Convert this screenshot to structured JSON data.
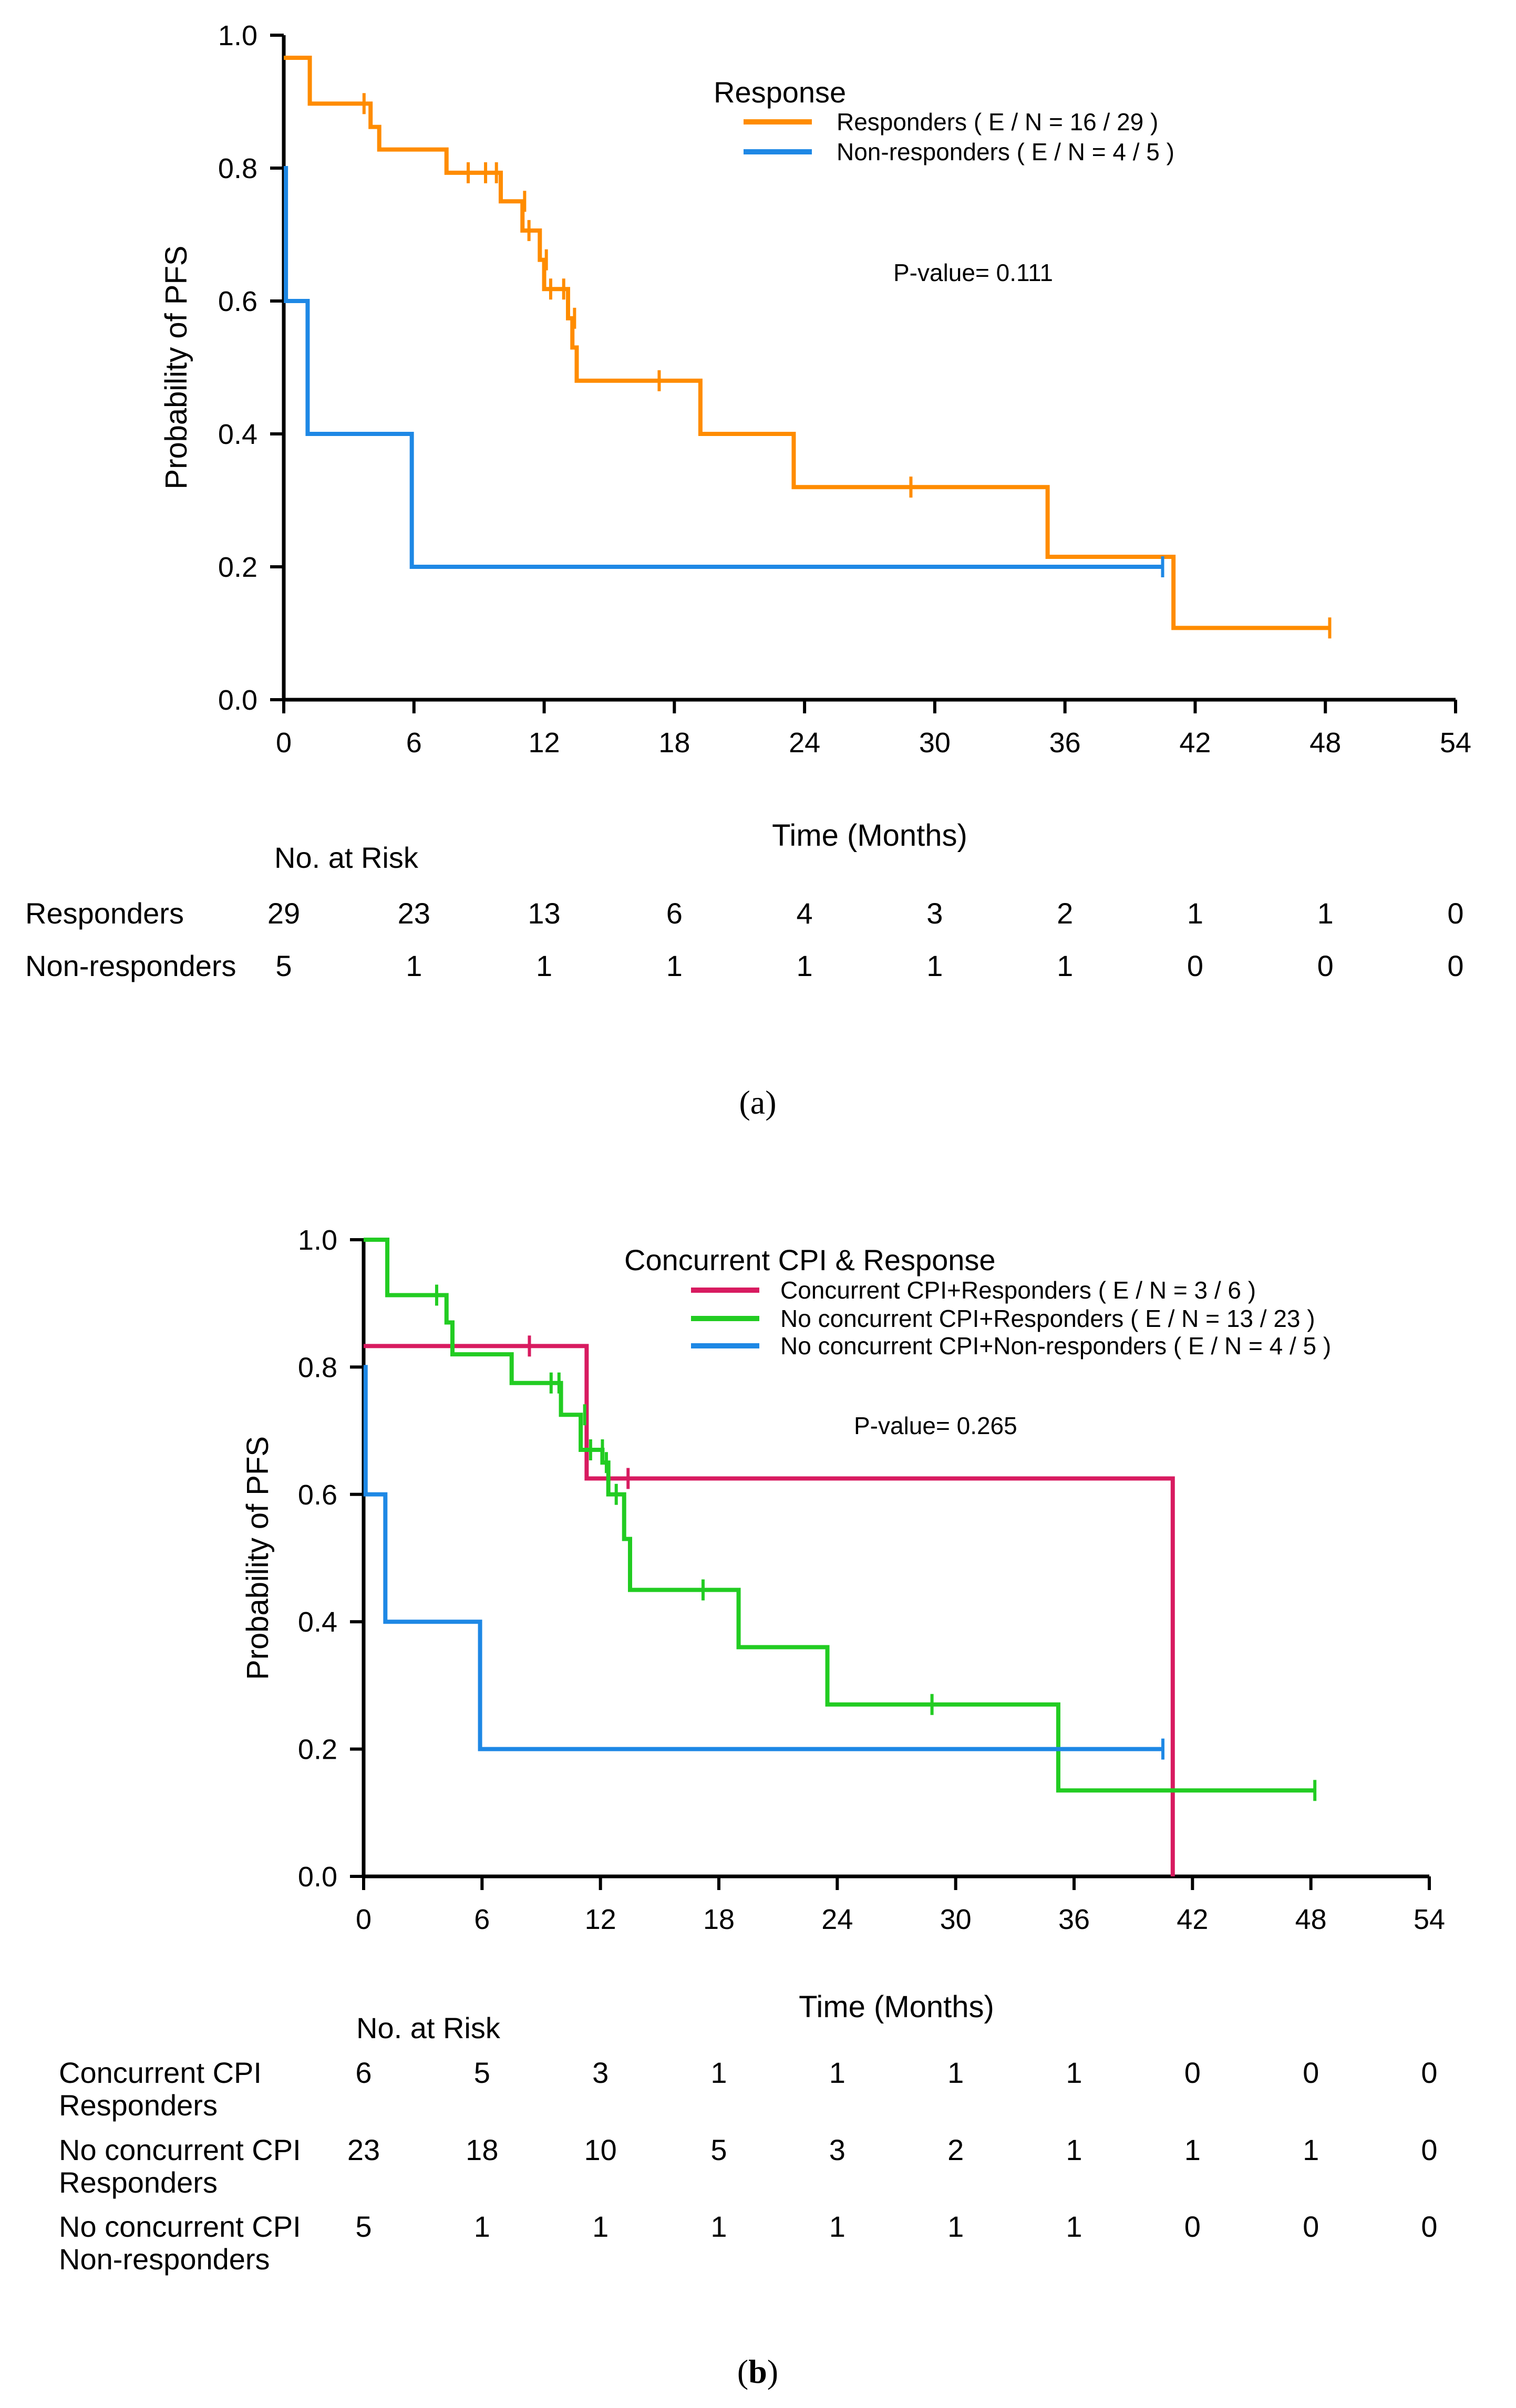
{
  "chart_data": [
    {
      "type": "km_survival",
      "panel_label_parts": [
        "(",
        "a",
        ")"
      ],
      "xlabel": "Time (Months)",
      "ylabel": "Probability of PFS",
      "xticks": [
        0,
        6,
        12,
        18,
        24,
        30,
        36,
        42,
        48,
        54
      ],
      "yticks": [
        "0.0",
        "0.2",
        "0.4",
        "0.6",
        "0.8",
        "1.0"
      ],
      "xlim": [
        0,
        54
      ],
      "ylim": [
        0,
        1
      ],
      "legend_title": "Response",
      "p_value": "P-value= 0.111",
      "series": [
        {
          "name": "Responders",
          "legend": "Responders ( E / N = 16 / 29 )",
          "color": "#ff8c00",
          "steps": [
            [
              0,
              0.966
            ],
            [
              1.2,
              0.897
            ],
            [
              4,
              0.862
            ],
            [
              4.4,
              0.828
            ],
            [
              7.5,
              0.793
            ],
            [
              10,
              0.75
            ],
            [
              11,
              0.706
            ],
            [
              11.8,
              0.662
            ],
            [
              12,
              0.618
            ],
            [
              13.1,
              0.574
            ],
            [
              13.3,
              0.53
            ],
            [
              13.5,
              0.48
            ],
            [
              19.2,
              0.4
            ],
            [
              23.5,
              0.32
            ],
            [
              35.2,
              0.215
            ],
            [
              41,
              0.108
            ],
            [
              48.2,
              0.108
            ]
          ],
          "censors": [
            [
              3.7,
              0.897
            ],
            [
              8.5,
              0.793
            ],
            [
              9.3,
              0.793
            ],
            [
              9.8,
              0.793
            ],
            [
              11.1,
              0.75
            ],
            [
              11.3,
              0.706
            ],
            [
              12.1,
              0.662
            ],
            [
              12.3,
              0.618
            ],
            [
              12.9,
              0.618
            ],
            [
              13.4,
              0.574
            ],
            [
              17.3,
              0.48
            ],
            [
              28.9,
              0.32
            ],
            [
              48.2,
              0.108
            ]
          ]
        },
        {
          "name": "Non-responders",
          "legend": "Non-responders ( E / N = 4 / 5 )",
          "color": "#1e88e5",
          "steps": [
            [
              0,
              0.8
            ],
            [
              0.1,
              0.6
            ],
            [
              1.1,
              0.4
            ],
            [
              5.9,
              0.2
            ],
            [
              40.5,
              0.2
            ]
          ],
          "censors": [
            [
              40.5,
              0.2
            ]
          ]
        }
      ],
      "risk_table": {
        "title": "No. at Risk",
        "rows": [
          {
            "label": [
              "Responders"
            ],
            "values": [
              "29",
              "23",
              "13",
              "6",
              "4",
              "3",
              "2",
              "1",
              "1",
              "0"
            ]
          },
          {
            "label": [
              "Non-responders"
            ],
            "values": [
              "5",
              "1",
              "1",
              "1",
              "1",
              "1",
              "1",
              "0",
              "0",
              "0"
            ]
          }
        ]
      }
    },
    {
      "type": "km_survival",
      "panel_label_parts": [
        "(",
        "b",
        ")"
      ],
      "xlabel": "Time (Months)",
      "ylabel": "Probability of PFS",
      "xticks": [
        0,
        6,
        12,
        18,
        24,
        30,
        36,
        42,
        48,
        54
      ],
      "yticks": [
        "0.0",
        "0.2",
        "0.4",
        "0.6",
        "0.8",
        "1.0"
      ],
      "xlim": [
        0,
        54
      ],
      "ylim": [
        0,
        1
      ],
      "legend_title": "Concurrent CPI & Response",
      "p_value": "P-value= 0.265",
      "series": [
        {
          "name": "Concurrent CPI+Responders",
          "legend": "Concurrent CPI+Responders ( E / N = 3 / 6 )",
          "color": "#d81b60",
          "steps": [
            [
              0,
              0.833
            ],
            [
              11.3,
              0.625
            ],
            [
              41,
              0.0
            ]
          ],
          "censors": [
            [
              8.4,
              0.833
            ],
            [
              13.4,
              0.625
            ]
          ]
        },
        {
          "name": "No concurrent CPI+Responders",
          "legend": "No concurrent CPI+Responders ( E / N = 13 / 23 )",
          "color": "#22cc22",
          "steps": [
            [
              0,
              1.0
            ],
            [
              1.2,
              0.913
            ],
            [
              4.2,
              0.87
            ],
            [
              4.5,
              0.82
            ],
            [
              7.5,
              0.775
            ],
            [
              10,
              0.725
            ],
            [
              11,
              0.67
            ],
            [
              12.1,
              0.65
            ],
            [
              12.4,
              0.6
            ],
            [
              13.2,
              0.53
            ],
            [
              13.5,
              0.45
            ],
            [
              19,
              0.36
            ],
            [
              23.5,
              0.27
            ],
            [
              35.2,
              0.135
            ],
            [
              48.2,
              0.135
            ]
          ],
          "censors": [
            [
              3.7,
              0.913
            ],
            [
              9.5,
              0.775
            ],
            [
              9.9,
              0.775
            ],
            [
              11.2,
              0.725
            ],
            [
              11.5,
              0.67
            ],
            [
              12.1,
              0.67
            ],
            [
              12.3,
              0.65
            ],
            [
              12.8,
              0.6
            ],
            [
              17.2,
              0.45
            ],
            [
              28.8,
              0.27
            ],
            [
              48.2,
              0.135
            ]
          ]
        },
        {
          "name": "No concurrent CPI+Non-responders",
          "legend": "No concurrent CPI+Non-responders ( E / N = 4 / 5 )",
          "color": "#1e88e5",
          "steps": [
            [
              0,
              0.8
            ],
            [
              0.1,
              0.6
            ],
            [
              1.1,
              0.4
            ],
            [
              5.9,
              0.2
            ],
            [
              40.5,
              0.2
            ]
          ],
          "censors": [
            [
              40.5,
              0.2
            ]
          ]
        }
      ],
      "risk_table": {
        "title": "No. at Risk",
        "rows": [
          {
            "label": [
              "Concurrent CPI",
              "Responders"
            ],
            "values": [
              "6",
              "5",
              "3",
              "1",
              "1",
              "1",
              "1",
              "0",
              "0",
              "0"
            ]
          },
          {
            "label": [
              "No concurrent CPI",
              "Responders"
            ],
            "values": [
              "23",
              "18",
              "10",
              "5",
              "3",
              "2",
              "1",
              "1",
              "1",
              "0"
            ]
          },
          {
            "label": [
              "No concurrent CPI",
              "Non-responders"
            ],
            "values": [
              "5",
              "1",
              "1",
              "1",
              "1",
              "1",
              "1",
              "0",
              "0",
              "0"
            ]
          }
        ]
      }
    }
  ]
}
